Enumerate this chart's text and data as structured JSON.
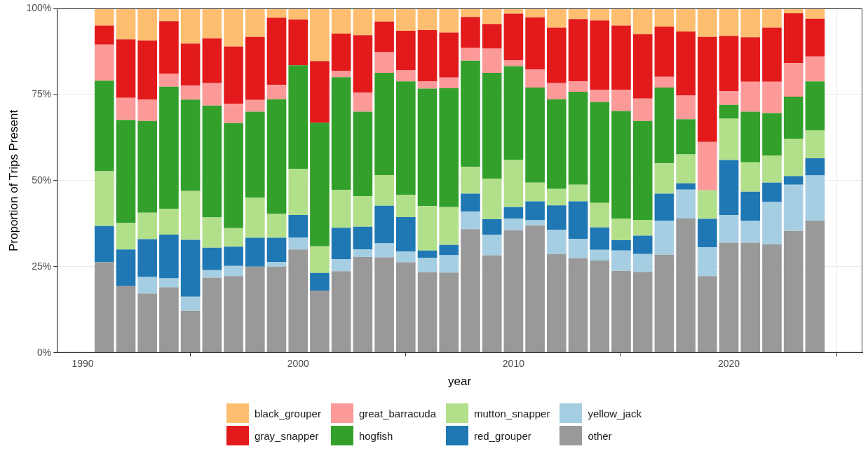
{
  "chart_data": {
    "type": "bar",
    "stacked": true,
    "xlabel": "year",
    "ylabel": "Proportion of Trips Present",
    "x": [
      1991,
      1992,
      1993,
      1994,
      1995,
      1996,
      1997,
      1998,
      1999,
      2000,
      2001,
      2002,
      2003,
      2004,
      2005,
      2006,
      2007,
      2008,
      2009,
      2010,
      2011,
      2012,
      2013,
      2014,
      2015,
      2016,
      2017,
      2018,
      2019,
      2020,
      2021,
      2022,
      2023,
      2024
    ],
    "xlim": [
      1988.8,
      2026.2
    ],
    "xticks": [
      1990,
      2000,
      2010,
      2020
    ],
    "ylim": [
      0,
      100
    ],
    "yticks": [
      {
        "value": 0,
        "label": "0%"
      },
      {
        "value": 25,
        "label": "25%"
      },
      {
        "value": 50,
        "label": "50%"
      },
      {
        "value": 75,
        "label": "75%"
      },
      {
        "value": 100,
        "label": "100%"
      }
    ],
    "grid": true,
    "legend": "bottom",
    "series": [
      {
        "name": "other",
        "color": "#999999",
        "values": [
          26.3,
          19.5,
          17.2,
          19,
          12.2,
          21.8,
          22.3,
          25,
          25,
          30,
          18,
          23.7,
          27.8,
          27.7,
          26.3,
          23.4,
          23.3,
          35.9,
          28.3,
          35.6,
          37,
          28.7,
          27.5,
          26.8,
          23.8,
          23.5,
          28.5,
          39,
          22.3,
          32,
          32,
          31.5,
          35.4,
          38.4
        ]
      },
      {
        "name": "yellow_jack",
        "color": "#a6cee3",
        "values": [
          0,
          0,
          4.8,
          2.6,
          4.1,
          2.2,
          2.9,
          0,
          1.4,
          3.4,
          0,
          3.5,
          2.2,
          4.1,
          3.1,
          4.2,
          5,
          5.1,
          5.9,
          3.4,
          1.5,
          7,
          5.6,
          3.1,
          5.9,
          5.2,
          9.9,
          8.4,
          8.3,
          8,
          6.3,
          12.3,
          13.4,
          13.1
        ]
      },
      {
        "name": "red_grouper",
        "color": "#1f78b4",
        "values": [
          10.5,
          10.5,
          11,
          12.7,
          16.5,
          6.5,
          5.6,
          8.4,
          7,
          6.6,
          5.2,
          9.1,
          6.6,
          10.9,
          10,
          2.1,
          3,
          5.2,
          4.6,
          3.3,
          5.5,
          7.1,
          10.9,
          6.5,
          3,
          5.3,
          7.8,
          1.8,
          8.3,
          16,
          8.5,
          5.6,
          2.5,
          5
        ]
      },
      {
        "name": "mutton_snapper",
        "color": "#b2df8a",
        "values": [
          15.9,
          7.7,
          7.7,
          7.5,
          14.2,
          8.8,
          5.4,
          11.6,
          6.9,
          13.4,
          7.7,
          11,
          8.9,
          8.9,
          6.4,
          12.9,
          11,
          7.8,
          11.8,
          13.7,
          5.4,
          4.8,
          4.8,
          7.1,
          6.2,
          4.6,
          8.8,
          8.4,
          8.3,
          12,
          8.5,
          7.9,
          10.9,
          8.1
        ]
      },
      {
        "name": "hogfish",
        "color": "#33a02c",
        "values": [
          26.3,
          29.9,
          26.6,
          35.5,
          26.5,
          32.5,
          30.5,
          25,
          33.3,
          30.1,
          35.9,
          32.7,
          24.5,
          29.7,
          33,
          34.1,
          34.5,
          30.8,
          30.7,
          27.2,
          27.6,
          26,
          27,
          29.3,
          31.3,
          28.7,
          22,
          10.2,
          0,
          4,
          14.7,
          12.3,
          12.2,
          14.2
        ]
      },
      {
        "name": "great_barracuda",
        "color": "#fb9a99",
        "values": [
          10.5,
          6.4,
          6.2,
          3.7,
          4.1,
          6.5,
          5.6,
          3.4,
          4.2,
          0,
          0,
          1.8,
          5.5,
          6,
          3.2,
          2.1,
          3.1,
          3.7,
          7,
          1.7,
          5.3,
          4.7,
          3,
          3.6,
          6.2,
          6.5,
          3.1,
          6.9,
          14,
          4,
          8.7,
          9.1,
          9.7,
          7.2
        ]
      },
      {
        "name": "gray_snapper",
        "color": "#e31a1c",
        "values": [
          5.5,
          17,
          17.2,
          15.3,
          12.2,
          13,
          16.6,
          18.3,
          19.5,
          13.3,
          17.9,
          10.9,
          16.7,
          8.9,
          11.5,
          14.9,
          13.1,
          9,
          7.2,
          13.6,
          15.1,
          16.1,
          18.1,
          20.1,
          18.6,
          18.7,
          14.6,
          18.6,
          30.5,
          16,
          12.9,
          15.7,
          14.5,
          11
        ]
      },
      {
        "name": "black_grouper",
        "color": "#fdbf6f",
        "values": [
          5,
          9,
          9.3,
          3.7,
          10.2,
          8.7,
          11.1,
          8.3,
          2.7,
          3.2,
          15.3,
          7.3,
          7.8,
          3.8,
          6.5,
          6.3,
          7,
          2.5,
          4.5,
          1.5,
          2.6,
          5.6,
          3.1,
          3.5,
          5,
          7.5,
          5.3,
          6.7,
          8.3,
          8,
          8.4,
          5.6,
          1.4,
          3
        ]
      }
    ]
  }
}
